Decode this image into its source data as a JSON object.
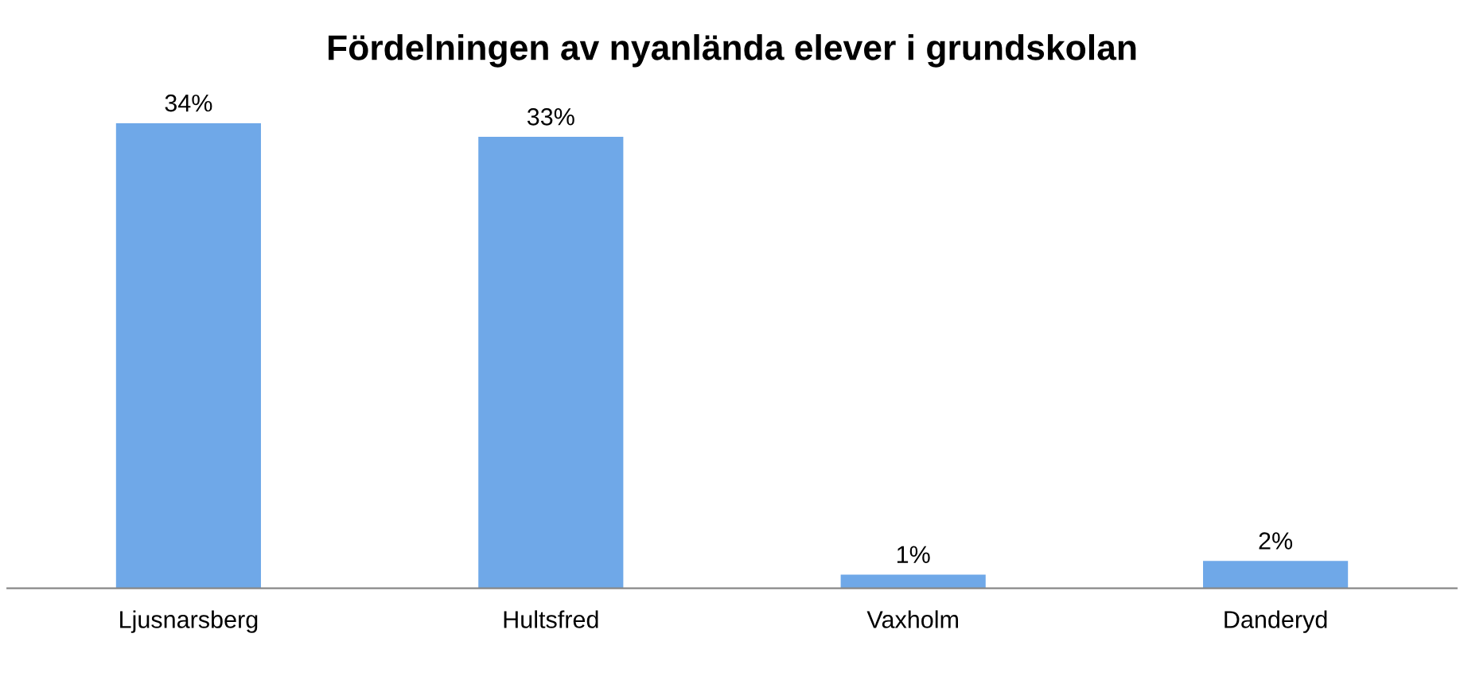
{
  "chart_data": {
    "type": "bar",
    "title": "Fördelningen av nyanlända elever i grundskolan",
    "categories": [
      "Ljusnarsberg",
      "Hultsfred",
      "Vaxholm",
      "Danderyd"
    ],
    "values": [
      34,
      33,
      1,
      2
    ],
    "value_labels": [
      "34%",
      "33%",
      "1%",
      "2%"
    ],
    "color": "#6fa8e8",
    "grid": false,
    "legend": false
  }
}
